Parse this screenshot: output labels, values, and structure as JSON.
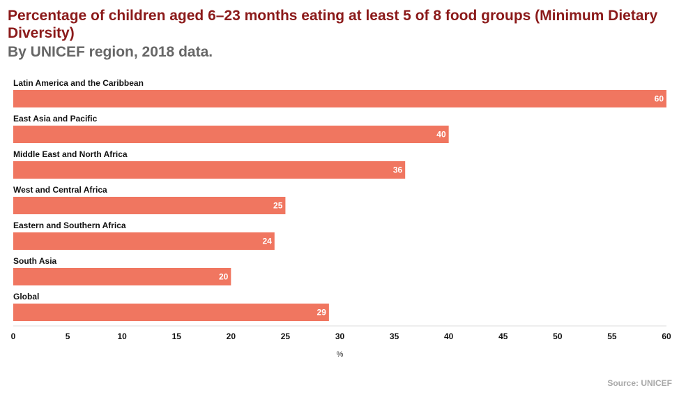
{
  "title": "Percentage of children aged 6–23 months eating at least 5 of 8 food groups (Minimum Dietary Diversity)",
  "subtitle": "By UNICEF region, 2018 data.",
  "source": "Source: UNICEF",
  "colors": {
    "bar": "#f07660",
    "title": "#8b1a1a",
    "subtitle": "#666666",
    "source": "#a8a8a8"
  },
  "chart_data": {
    "type": "bar",
    "orientation": "horizontal",
    "categories": [
      "Latin America and the Caribbean",
      "East Asia and Pacific",
      "Middle East and North Africa",
      "West and Central Africa",
      "Eastern and Southern Africa",
      "South Asia",
      "Global"
    ],
    "values": [
      60,
      40,
      36,
      25,
      24,
      20,
      29
    ],
    "xlabel": "%",
    "xlim": [
      0,
      60
    ],
    "xticks": [
      0,
      5,
      10,
      15,
      20,
      25,
      30,
      35,
      40,
      45,
      50,
      55,
      60
    ],
    "grid": false,
    "legend": "none"
  }
}
